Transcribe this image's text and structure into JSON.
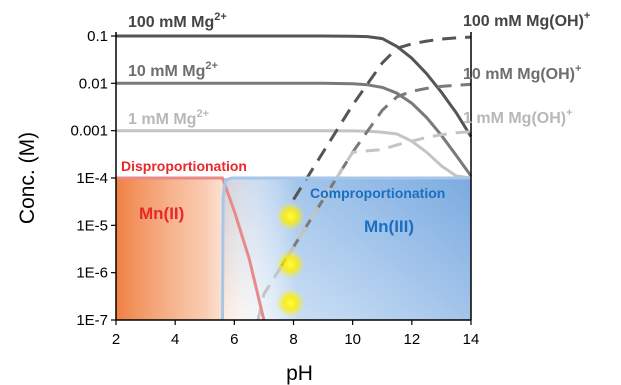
{
  "chart_data": {
    "type": "line",
    "xlabel": "pH",
    "ylabel": "Conc. (M)",
    "xlim": [
      2,
      14
    ],
    "ylim": [
      1e-07,
      0.1
    ],
    "yscale": "log",
    "grid": false,
    "x_ticks": [
      "2",
      "4",
      "6",
      "8",
      "10",
      "12",
      "14"
    ],
    "y_ticks": [
      {
        "value": 0.1,
        "label": "0.1"
      },
      {
        "value": 0.01,
        "label": "0.01"
      },
      {
        "value": 0.001,
        "label": "0.001"
      },
      {
        "value": 0.0001,
        "label": "1E-4"
      },
      {
        "value": 1e-05,
        "label": "1E-5"
      },
      {
        "value": 1e-06,
        "label": "1E-6"
      },
      {
        "value": 1e-07,
        "label": "1E-7"
      }
    ],
    "series": [
      {
        "name": "100 mM Mg2+",
        "style": "solid",
        "color": "#555555",
        "x": [
          2,
          4,
          6,
          8,
          9,
          10,
          10.5,
          11,
          11.5,
          12,
          12.5,
          13,
          13.5,
          14
        ],
        "y": [
          0.1,
          0.1,
          0.1,
          0.1,
          0.1,
          0.099,
          0.097,
          0.088,
          0.06,
          0.034,
          0.016,
          0.0065,
          0.0024,
          0.00075
        ]
      },
      {
        "name": "10 mM Mg2+",
        "style": "solid",
        "color": "#7a7a7a",
        "x": [
          2,
          4,
          6,
          8,
          9,
          10,
          10.5,
          11,
          11.5,
          12,
          12.5,
          13,
          13.5,
          14
        ],
        "y": [
          0.01,
          0.01,
          0.01,
          0.01,
          0.01,
          0.0098,
          0.0093,
          0.0082,
          0.0062,
          0.0038,
          0.0019,
          0.0008,
          0.0003,
          0.00011
        ]
      },
      {
        "name": "1 mM Mg2+",
        "style": "solid",
        "color": "#c4c4c4",
        "x": [
          2,
          4,
          6,
          8,
          9,
          10,
          10.5,
          11,
          11.5,
          12,
          12.5,
          13,
          13.5,
          14
        ],
        "y": [
          0.001,
          0.001,
          0.001,
          0.001,
          0.001,
          0.00099,
          0.00097,
          0.00093,
          0.00085,
          0.0006,
          0.00035,
          0.00018,
          0.00011,
          0.0001
        ]
      },
      {
        "name": "100 mM Mg(OH)+",
        "style": "dashed",
        "color": "#555555",
        "x": [
          8,
          9,
          10,
          11,
          11.5,
          12,
          12.5,
          13,
          13.5,
          14
        ],
        "y": [
          3.5e-05,
          0.00035,
          0.0035,
          0.027,
          0.055,
          0.068,
          0.078,
          0.086,
          0.091,
          0.095
        ]
      },
      {
        "name": "10 mM Mg(OH)+",
        "style": "dashed",
        "color": "#7a7a7a",
        "x": [
          7.5,
          8,
          9,
          10,
          11,
          11.5,
          12,
          12.5,
          13,
          13.5,
          14
        ],
        "y": [
          1.1e-06,
          3.5e-06,
          3.5e-05,
          0.00035,
          0.0027,
          0.0052,
          0.0068,
          0.0078,
          0.0086,
          0.0091,
          0.0095
        ]
      },
      {
        "name": "1 mM Mg(OH)+",
        "style": "dashed",
        "color": "#c4c4c4",
        "x": [
          6.8,
          7,
          8,
          9,
          10,
          11,
          11.5,
          12,
          12.5,
          13,
          13.5,
          14
        ],
        "y": [
          1e-07,
          3.5e-07,
          3.5e-06,
          3.5e-05,
          0.00035,
          0.0004,
          0.0005,
          0.0006,
          0.00072,
          0.00082,
          0.0009,
          0.00095
        ]
      },
      {
        "name": "Mn(II)",
        "style": "solid",
        "color": "#e88a8a",
        "x": [
          2,
          5.6,
          6,
          6.5,
          7
        ],
        "y": [
          0.0001,
          0.0001,
          2e-05,
          2e-06,
          1e-07
        ]
      },
      {
        "name": "Mn(III)",
        "style": "solid",
        "color": "#a6c6ea",
        "x": [
          5.6,
          5.62,
          5.7,
          5.9,
          6.5,
          14
        ],
        "y": [
          1e-07,
          4e-05,
          9e-05,
          0.0001,
          0.0001,
          0.0001
        ]
      }
    ],
    "regions": [
      {
        "name": "Mn(II)",
        "label": "Mn(II)",
        "x": [
          2,
          7.5
        ],
        "y": [
          1e-07,
          0.0001
        ],
        "color": "#f08a50"
      },
      {
        "name": "Mn(III)",
        "label": "Mn(III)",
        "x": [
          5.6,
          14
        ],
        "y": [
          1e-07,
          0.0001
        ],
        "color": "#7aa9e0"
      }
    ],
    "annotations": [
      {
        "name": "label-100mM-mg",
        "text": "100 mM Mg",
        "sup": "2+",
        "color": "#444444"
      },
      {
        "name": "label-10mM-mg",
        "text": "10 mM Mg",
        "sup": "2+",
        "color": "#6e6e6e"
      },
      {
        "name": "label-1mM-mg",
        "text": "1 mM Mg",
        "sup": "2+",
        "color": "#b8b8b8"
      },
      {
        "name": "label-100mM-mgoh",
        "text": "100 mM Mg(OH)",
        "sup": "+",
        "color": "#444444"
      },
      {
        "name": "label-10mM-mgoh",
        "text": "10 mM Mg(OH)",
        "sup": "+",
        "color": "#6e6e6e"
      },
      {
        "name": "label-1mM-mgoh",
        "text": "1 mM Mg(OH)",
        "sup": "+",
        "color": "#b8b8b8"
      },
      {
        "name": "label-disproportionation",
        "text": "Disproportionation",
        "sup": "",
        "color": "#e8282a"
      },
      {
        "name": "label-comproportionation",
        "text": "Comproportionation",
        "sup": "",
        "color": "#1a6fc0"
      },
      {
        "name": "label-mn2",
        "text": "Mn(II)",
        "sup": "",
        "color": "#e8282a"
      },
      {
        "name": "label-mn3",
        "text": "Mn(III)",
        "sup": "",
        "color": "#1a6fc0"
      }
    ],
    "glow_points": [
      {
        "name": "glow-spot-top",
        "x": 7.9,
        "y": 1.55e-05
      },
      {
        "name": "glow-spot-mid",
        "x": 7.9,
        "y": 1.5e-06
      },
      {
        "name": "glow-spot-bottom",
        "x": 7.9,
        "y": 2.3e-07
      }
    ]
  }
}
